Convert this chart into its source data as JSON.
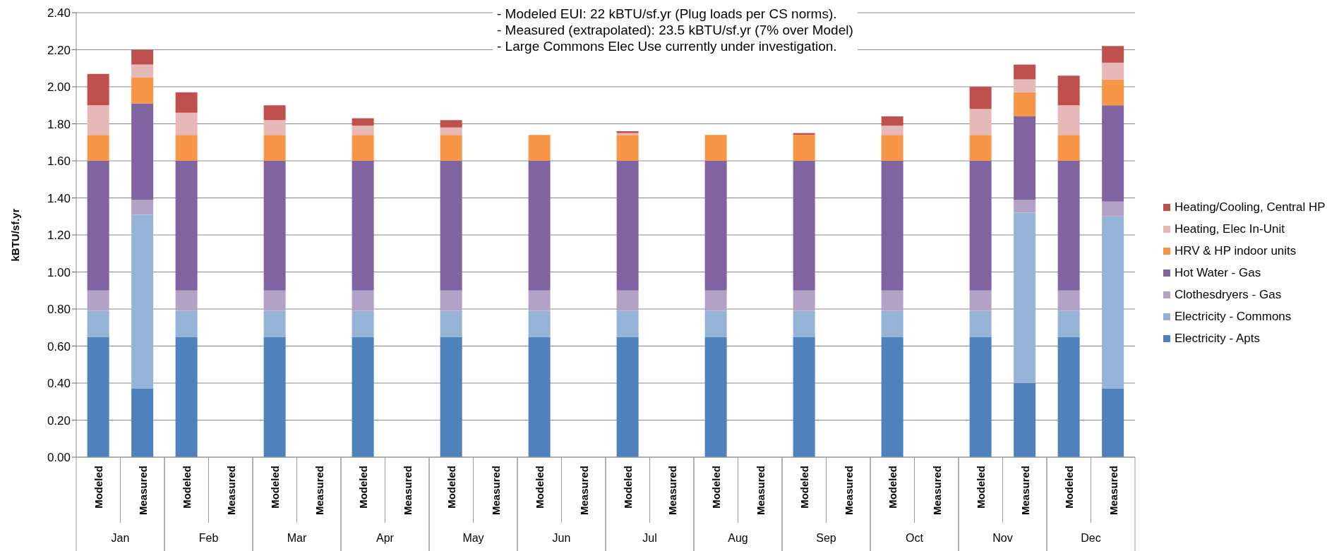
{
  "chart_data": {
    "type": "bar",
    "stacked": true,
    "ylabel": "kBTU/sf.yr",
    "annotations": [
      "- Modeled EUI: 22 kBTU/sf.yr (Plug loads per CS norms).",
      "- Measured (extrapolated): 23.5 kBTU/sf.yr (7% over Model)",
      "- Large Commons Elec Use currently under investigation.",
      "Jan",
      "Feb",
      "Mar",
      "Apr",
      "May",
      "Jun",
      "Jul",
      "Aug",
      "Sep",
      "Oct",
      "Nov",
      "Dec"
    ],
    "categories": [
      "Modeled",
      "Measured",
      "Modeled",
      "Measured",
      "Modeled",
      "Measured",
      "Modeled",
      "Measured",
      "Modeled",
      "Measured",
      "Modeled",
      "Measured",
      "Modeled",
      "Measured",
      "Modeled",
      "Measured",
      "Modeled",
      "Measured",
      "Modeled",
      "Measured",
      "Modeled",
      "Measured",
      "Modeled",
      "Measured"
    ],
    "series": [
      {
        "name": "Electricity - Apts",
        "color": "#4f81bd",
        "values": [
          0.65,
          0.37,
          0.65,
          null,
          0.65,
          null,
          0.65,
          null,
          0.65,
          null,
          0.65,
          null,
          0.65,
          null,
          0.65,
          null,
          0.65,
          null,
          0.65,
          null,
          0.65,
          0.4,
          0.65,
          0.37
        ]
      },
      {
        "name": "Electricity - Commons",
        "color": "#95b3d7",
        "values": [
          0.14,
          0.94,
          0.14,
          null,
          0.14,
          null,
          0.14,
          null,
          0.14,
          null,
          0.14,
          null,
          0.14,
          null,
          0.14,
          null,
          0.14,
          null,
          0.14,
          null,
          0.14,
          0.92,
          0.14,
          0.93
        ]
      },
      {
        "name": "Clothesdryers - Gas",
        "color": "#b3a2c7",
        "values": [
          0.11,
          0.08,
          0.11,
          null,
          0.11,
          null,
          0.11,
          null,
          0.11,
          null,
          0.11,
          null,
          0.11,
          null,
          0.11,
          null,
          0.11,
          null,
          0.11,
          null,
          0.11,
          0.07,
          0.11,
          0.08
        ]
      },
      {
        "name": "Hot Water - Gas",
        "color": "#8064a2",
        "values": [
          0.7,
          0.52,
          0.7,
          null,
          0.7,
          null,
          0.7,
          null,
          0.7,
          null,
          0.7,
          null,
          0.7,
          null,
          0.7,
          null,
          0.7,
          null,
          0.7,
          null,
          0.7,
          0.45,
          0.7,
          0.52
        ]
      },
      {
        "name": "HRV & HP indoor units",
        "color": "#f79646",
        "values": [
          0.14,
          0.14,
          0.14,
          null,
          0.14,
          null,
          0.14,
          null,
          0.14,
          null,
          0.14,
          null,
          0.14,
          null,
          0.14,
          null,
          0.14,
          null,
          0.14,
          null,
          0.14,
          0.13,
          0.14,
          0.14
        ]
      },
      {
        "name": "Heating, Elec In-Unit",
        "color": "#e6b9b8",
        "values": [
          0.16,
          0.07,
          0.12,
          null,
          0.08,
          null,
          0.05,
          null,
          0.04,
          null,
          0,
          null,
          0.01,
          null,
          0,
          null,
          0,
          null,
          0.05,
          null,
          0.14,
          0.07,
          0.16,
          0.09
        ]
      },
      {
        "name": "Heating/Cooling, Central HP",
        "color": "#c0504d",
        "values": [
          0.17,
          0.08,
          0.11,
          null,
          0.08,
          null,
          0.04,
          null,
          0.04,
          null,
          0,
          null,
          0.01,
          null,
          0,
          null,
          0.01,
          null,
          0.05,
          null,
          0.12,
          0.08,
          0.16,
          0.09
        ]
      }
    ],
    "ylim": [
      0,
      2.4
    ],
    "yticks": [
      {
        "value": 0,
        "label": "0.00"
      },
      {
        "value": 0.2,
        "label": "0.20"
      },
      {
        "value": 0.4,
        "label": "0.40"
      },
      {
        "value": 0.6,
        "label": "0.60"
      },
      {
        "value": 0.8,
        "label": "0.80"
      },
      {
        "value": 1,
        "label": "1.00"
      },
      {
        "value": 1.2,
        "label": "1.20"
      },
      {
        "value": 1.4,
        "label": "1.40"
      },
      {
        "value": 1.6,
        "label": "1.60"
      },
      {
        "value": 1.8,
        "label": "1.80"
      },
      {
        "value": 2,
        "label": "2.00"
      },
      {
        "value": 2.2,
        "label": "2.20"
      },
      {
        "value": 2.4,
        "label": "2.40"
      }
    ],
    "grid": "y",
    "legend": "right"
  }
}
